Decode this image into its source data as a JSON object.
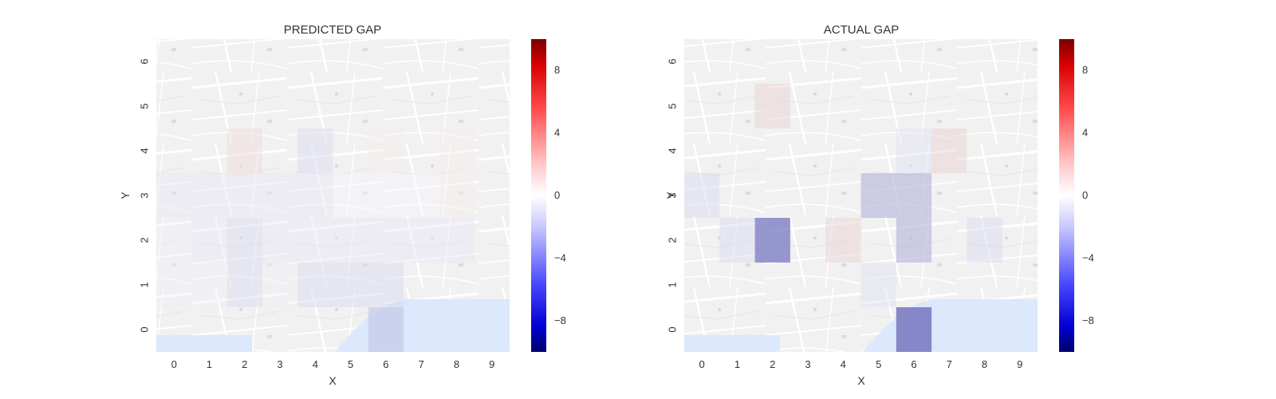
{
  "chart_data": [
    {
      "type": "heatmap",
      "title": "PREDICTED GAP",
      "xlabel": "X",
      "ylabel": "Y",
      "x_ticks": [
        "0",
        "1",
        "2",
        "3",
        "4",
        "5",
        "6",
        "7",
        "8",
        "9"
      ],
      "y_ticks": [
        "0",
        "1",
        "2",
        "3",
        "4",
        "5",
        "6"
      ],
      "xlim": [
        -0.5,
        9.5
      ],
      "ylim": [
        -0.5,
        6.5
      ],
      "grid": false,
      "cells": [
        {
          "x": 2,
          "y": 4,
          "value": 1.5
        },
        {
          "x": 4,
          "y": 4,
          "value": -1.5
        },
        {
          "x": 6,
          "y": 4,
          "value": 0.8
        },
        {
          "x": 8,
          "y": 4,
          "value": 0.8
        },
        {
          "x": 0,
          "y": 3,
          "value": -1.0
        },
        {
          "x": 1,
          "y": 3,
          "value": -1.0
        },
        {
          "x": 2,
          "y": 3,
          "value": -1.0
        },
        {
          "x": 3,
          "y": 3,
          "value": -1.0
        },
        {
          "x": 4,
          "y": 3,
          "value": -1.0
        },
        {
          "x": 5,
          "y": 3,
          "value": -0.3
        },
        {
          "x": 6,
          "y": 3,
          "value": -0.3
        },
        {
          "x": 7,
          "y": 3,
          "value": -0.3
        },
        {
          "x": 8,
          "y": 3,
          "value": 0.8
        },
        {
          "x": 0,
          "y": 2,
          "value": -0.6
        },
        {
          "x": 1,
          "y": 2,
          "value": -1.0
        },
        {
          "x": 2,
          "y": 2,
          "value": -1.5
        },
        {
          "x": 3,
          "y": 2,
          "value": -1.0
        },
        {
          "x": 4,
          "y": 2,
          "value": -1.0
        },
        {
          "x": 5,
          "y": 2,
          "value": -1.0
        },
        {
          "x": 6,
          "y": 2,
          "value": -1.0
        },
        {
          "x": 7,
          "y": 2,
          "value": -1.0
        },
        {
          "x": 8,
          "y": 2,
          "value": -1.0
        },
        {
          "x": 0,
          "y": 1,
          "value": -0.6
        },
        {
          "x": 1,
          "y": 1,
          "value": -0.6
        },
        {
          "x": 2,
          "y": 1,
          "value": -1.5
        },
        {
          "x": 3,
          "y": 1,
          "value": -0.6
        },
        {
          "x": 4,
          "y": 1,
          "value": -1.5
        },
        {
          "x": 5,
          "y": 1,
          "value": -1.5
        },
        {
          "x": 6,
          "y": 1,
          "value": -1.5
        },
        {
          "x": 6,
          "y": 0,
          "value": -2.5
        }
      ]
    },
    {
      "type": "heatmap",
      "title": "ACTUAL GAP",
      "xlabel": "X",
      "ylabel": "Y",
      "x_ticks": [
        "0",
        "1",
        "2",
        "3",
        "4",
        "5",
        "6",
        "7",
        "8",
        "9"
      ],
      "y_ticks": [
        "0",
        "1",
        "2",
        "3",
        "4",
        "5",
        "6"
      ],
      "xlim": [
        -0.5,
        9.5
      ],
      "ylim": [
        -0.5,
        6.5
      ],
      "grid": false,
      "cells": [
        {
          "x": 2,
          "y": 5,
          "value": 1.8
        },
        {
          "x": 6,
          "y": 4,
          "value": -1.2
        },
        {
          "x": 7,
          "y": 4,
          "value": 1.8
        },
        {
          "x": 0,
          "y": 3,
          "value": -1.5
        },
        {
          "x": 5,
          "y": 3,
          "value": -3.0
        },
        {
          "x": 6,
          "y": 3,
          "value": -3.0
        },
        {
          "x": 1,
          "y": 2,
          "value": -1.5
        },
        {
          "x": 2,
          "y": 2,
          "value": -5.0
        },
        {
          "x": 4,
          "y": 2,
          "value": 1.8
        },
        {
          "x": 6,
          "y": 2,
          "value": -3.0
        },
        {
          "x": 8,
          "y": 2,
          "value": -1.5
        },
        {
          "x": 5,
          "y": 1,
          "value": -1.2
        },
        {
          "x": 6,
          "y": 0,
          "value": -5.5
        }
      ]
    }
  ],
  "colorbar": {
    "vmin": -10,
    "vmax": 10,
    "ticks": [
      8,
      4,
      0,
      -4,
      -8
    ],
    "tick_labels": [
      "8",
      "4",
      "0",
      "−4",
      "−8"
    ],
    "colors": {
      "low": "#00008b",
      "mid": "#ffffff",
      "high": "#8b0000"
    }
  }
}
